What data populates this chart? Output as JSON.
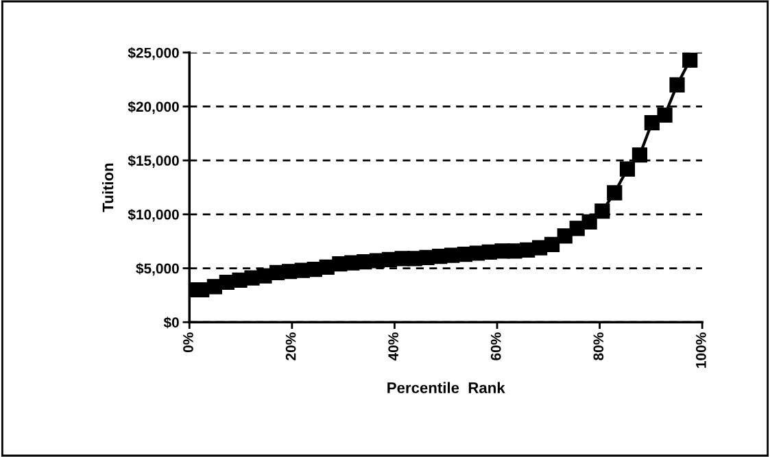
{
  "chart_data": {
    "type": "line",
    "xlabel": "Percentile  Rank",
    "ylabel": "Tuition",
    "x": [
      0,
      2.4,
      4.9,
      7.3,
      9.8,
      12.2,
      14.6,
      17.1,
      19.5,
      22.0,
      24.4,
      26.8,
      29.3,
      31.7,
      34.1,
      36.6,
      39.0,
      41.5,
      43.9,
      46.3,
      48.8,
      51.2,
      53.7,
      56.1,
      58.5,
      61.0,
      63.4,
      65.9,
      68.3,
      70.7,
      73.2,
      75.6,
      78.0,
      80.5,
      82.9,
      85.4,
      87.8,
      90.2,
      92.7,
      95.1,
      97.6
    ],
    "series": [
      {
        "color": "#000000",
        "values": [
          3000,
          3000,
          3300,
          3700,
          3900,
          4100,
          4300,
          4600,
          4700,
          4800,
          4900,
          5100,
          5400,
          5500,
          5600,
          5700,
          5800,
          5900,
          5900,
          6000,
          6100,
          6200,
          6300,
          6400,
          6500,
          6600,
          6600,
          6700,
          6900,
          7200,
          8000,
          8700,
          9300,
          10300,
          12000,
          14200,
          15500,
          18500,
          19200,
          22000,
          24300
        ]
      }
    ],
    "xlim": [
      0,
      100
    ],
    "xticks": [
      {
        "value": 0,
        "label": "0%"
      },
      {
        "value": 20,
        "label": "20%"
      },
      {
        "value": 40,
        "label": "40%"
      },
      {
        "value": 60,
        "label": "60%"
      },
      {
        "value": 80,
        "label": "80%"
      },
      {
        "value": 100,
        "label": "100%"
      }
    ],
    "ylim": [
      0,
      25000
    ],
    "yticks": [
      {
        "value": 0,
        "label": "$0"
      },
      {
        "value": 5000,
        "label": "$5,000"
      },
      {
        "value": 10000,
        "label": "$10,000"
      },
      {
        "value": 15000,
        "label": "$15,000"
      },
      {
        "value": 20000,
        "label": "$20,000"
      },
      {
        "value": 25000,
        "label": "$25,000"
      }
    ],
    "grid": "y",
    "marker": "square",
    "line_style": "solid"
  }
}
